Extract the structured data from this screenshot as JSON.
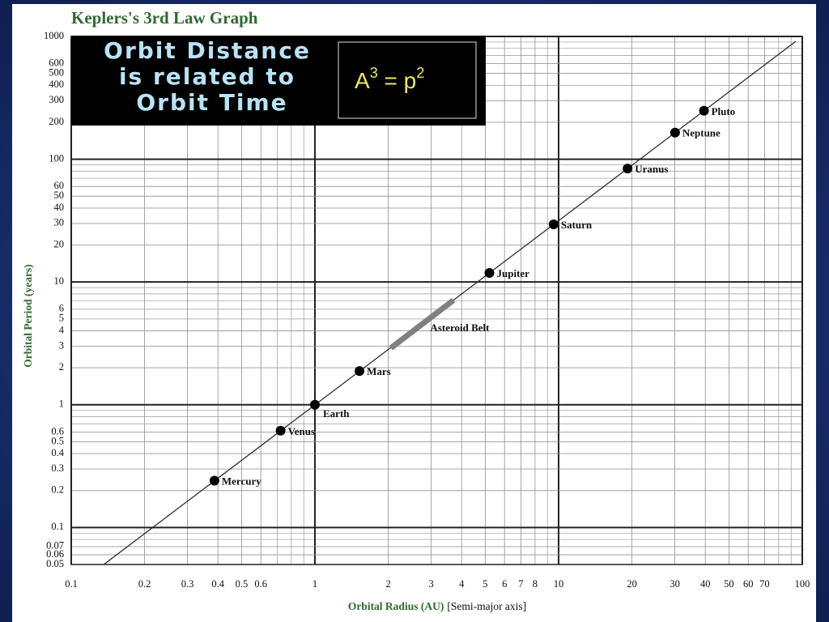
{
  "chart_data": {
    "type": "scatter",
    "title": "Keplers's 3rd Law Graph",
    "x_label": "Orbital Radius (AU)",
    "x_label_note": "[Semi-major axis]",
    "y_label": "Orbital Period (years)",
    "callout": [
      "Orbit Distance",
      "is related to",
      "Orbit Time"
    ],
    "formula": [
      "A",
      "3",
      " = p",
      "2"
    ],
    "xlog": true,
    "ylog": true,
    "grid": true,
    "minor_grid": true,
    "xlim": [
      0.1,
      100
    ],
    "ylim": [
      0.05,
      1000
    ],
    "xticks": [
      0.1,
      0.2,
      0.3,
      0.4,
      0.5,
      0.6,
      1,
      2,
      3,
      4,
      5,
      6,
      7,
      8,
      10,
      20,
      30,
      40,
      50,
      60,
      70,
      100
    ],
    "yticks": [
      0.05,
      0.06,
      0.07,
      0.1,
      0.2,
      0.3,
      0.4,
      0.5,
      0.6,
      1,
      2,
      3,
      4,
      5,
      6,
      10,
      20,
      30,
      40,
      50,
      60,
      100,
      200,
      300,
      400,
      500,
      600,
      1000
    ],
    "series": [
      {
        "type": "line",
        "color": "#222222",
        "x": [
          0.136,
          94
        ],
        "values": [
          0.05,
          911
        ]
      },
      {
        "type": "line",
        "name": "Asteroid Belt",
        "color": "#808080",
        "x": [
          2.05,
          3.7
        ],
        "values": [
          2.9,
          7.1
        ]
      },
      {
        "type": "scatter",
        "color": "#000000",
        "labels": [
          "Mercury",
          "Venus",
          "Earth",
          "Mars",
          "Jupiter",
          "Saturn",
          "Uranus",
          "Neptune",
          "Pluto"
        ],
        "x": [
          0.387,
          0.723,
          1,
          1.524,
          5.2,
          9.54,
          19.19,
          30.06,
          39.5
        ],
        "values": [
          0.241,
          0.615,
          1,
          1.881,
          11.86,
          29.46,
          84,
          164.8,
          248
        ]
      }
    ]
  }
}
